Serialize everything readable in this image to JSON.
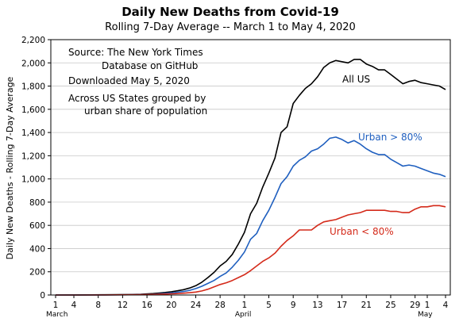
{
  "chart_data": {
    "type": "line",
    "title": "Daily New Deaths from Covid-19",
    "subtitle": "Rolling 7-Day Average -- March 1 to May 4, 2020",
    "ylabel": "Daily New Deaths - Rolling 7-Day Average",
    "ylim": [
      0,
      2200
    ],
    "yticks": [
      "0",
      "200",
      "400",
      "600",
      "800",
      "1,000",
      "1,200",
      "1,400",
      "1,600",
      "1,800",
      "2,000",
      "2,200"
    ],
    "x_day_range": [
      1,
      65
    ],
    "xticks": [
      {
        "day": 1,
        "label": "1"
      },
      {
        "day": 4,
        "label": "4"
      },
      {
        "day": 8,
        "label": "8"
      },
      {
        "day": 12,
        "label": "12"
      },
      {
        "day": 16,
        "label": "16"
      },
      {
        "day": 20,
        "label": "20"
      },
      {
        "day": 24,
        "label": "24"
      },
      {
        "day": 28,
        "label": "28"
      },
      {
        "day": 32,
        "label": "1"
      },
      {
        "day": 36,
        "label": "5"
      },
      {
        "day": 40,
        "label": "9"
      },
      {
        "day": 44,
        "label": "13"
      },
      {
        "day": 48,
        "label": "17"
      },
      {
        "day": 52,
        "label": "21"
      },
      {
        "day": 56,
        "label": "25"
      },
      {
        "day": 60,
        "label": "29"
      },
      {
        "day": 62,
        "label": "1"
      },
      {
        "day": 65,
        "label": "4"
      }
    ],
    "month_labels": [
      {
        "day": 1,
        "label": "March"
      },
      {
        "day": 32,
        "label": "April"
      },
      {
        "day": 62,
        "label": "May"
      }
    ],
    "notes": [
      "Source: The New York Times",
      "Database on GitHub",
      "Downloaded May 5, 2020",
      "Across US States grouped by",
      "urban share of population"
    ],
    "series": [
      {
        "name": "All US",
        "color": "#000000",
        "x": [
          1,
          5,
          9,
          13,
          15,
          17,
          18,
          19,
          20,
          21,
          22,
          23,
          24,
          25,
          26,
          27,
          28,
          29,
          30,
          31,
          32,
          33,
          34,
          35,
          36,
          37,
          38,
          39,
          40,
          41,
          42,
          43,
          44,
          45,
          46,
          47,
          48,
          49,
          50,
          51,
          52,
          53,
          54,
          55,
          56,
          57,
          58,
          59,
          60,
          61,
          62,
          63,
          64,
          65
        ],
        "values": [
          0,
          1,
          2,
          4,
          7,
          12,
          17,
          22,
          28,
          36,
          46,
          60,
          80,
          110,
          150,
          195,
          250,
          290,
          350,
          440,
          540,
          700,
          790,
          930,
          1050,
          1180,
          1400,
          1450,
          1650,
          1720,
          1780,
          1820,
          1880,
          1960,
          2000,
          2020,
          2010,
          2000,
          2030,
          2030,
          1990,
          1970,
          1940,
          1940,
          1900,
          1860,
          1820,
          1840,
          1850,
          1830,
          1820,
          1810,
          1800,
          1770
        ]
      },
      {
        "name": "Urban > 80%",
        "color": "#1f5fbf",
        "x": [
          1,
          5,
          9,
          13,
          15,
          17,
          18,
          19,
          20,
          21,
          22,
          23,
          24,
          25,
          26,
          27,
          28,
          29,
          30,
          31,
          32,
          33,
          34,
          35,
          36,
          37,
          38,
          39,
          40,
          41,
          42,
          43,
          44,
          45,
          46,
          47,
          48,
          49,
          50,
          51,
          52,
          53,
          54,
          55,
          56,
          57,
          58,
          59,
          60,
          61,
          62,
          63,
          64,
          65
        ],
        "values": [
          0,
          0,
          1,
          2,
          4,
          7,
          10,
          14,
          18,
          24,
          30,
          40,
          55,
          75,
          100,
          125,
          160,
          190,
          240,
          300,
          370,
          480,
          530,
          640,
          730,
          840,
          960,
          1020,
          1110,
          1160,
          1190,
          1240,
          1260,
          1300,
          1350,
          1360,
          1340,
          1310,
          1330,
          1300,
          1260,
          1230,
          1210,
          1210,
          1170,
          1140,
          1110,
          1120,
          1110,
          1090,
          1070,
          1050,
          1040,
          1020
        ]
      },
      {
        "name": "Urban < 80%",
        "color": "#d42a1a",
        "x": [
          1,
          5,
          9,
          13,
          15,
          17,
          18,
          19,
          20,
          21,
          22,
          23,
          24,
          25,
          26,
          27,
          28,
          29,
          30,
          31,
          32,
          33,
          34,
          35,
          36,
          37,
          38,
          39,
          40,
          41,
          42,
          43,
          44,
          45,
          46,
          47,
          48,
          49,
          50,
          51,
          52,
          53,
          54,
          55,
          56,
          57,
          58,
          59,
          60,
          61,
          62,
          63,
          64,
          65
        ],
        "values": [
          0,
          0,
          1,
          2,
          3,
          5,
          7,
          8,
          10,
          12,
          16,
          20,
          25,
          35,
          50,
          70,
          90,
          105,
          125,
          150,
          175,
          210,
          250,
          290,
          320,
          360,
          420,
          470,
          510,
          560,
          560,
          560,
          600,
          630,
          640,
          650,
          670,
          690,
          700,
          710,
          730,
          730,
          730,
          730,
          720,
          720,
          710,
          710,
          740,
          760,
          760,
          770,
          770,
          760
        ]
      }
    ]
  }
}
